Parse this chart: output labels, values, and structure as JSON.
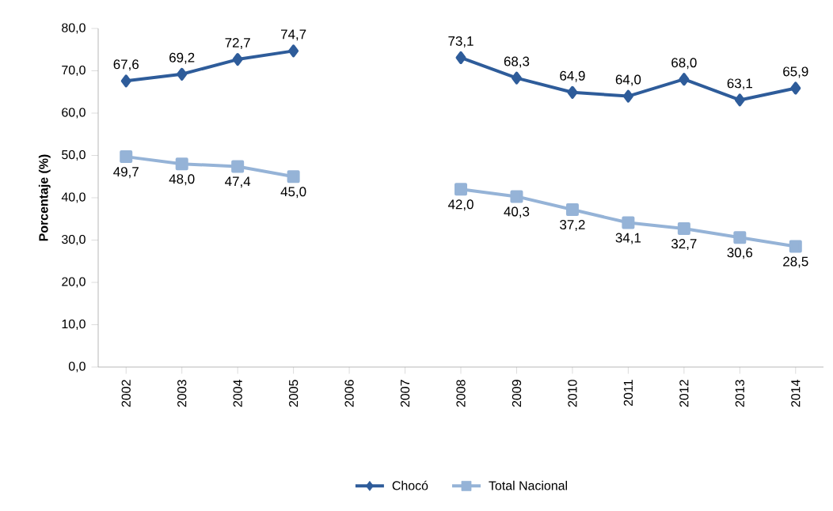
{
  "chart_data": {
    "type": "line",
    "ylabel": "Porcentaje (%)",
    "categories": [
      "2002",
      "2003",
      "2004",
      "2005",
      "2006",
      "2007",
      "2008",
      "2009",
      "2010",
      "2011",
      "2012",
      "2013",
      "2014"
    ],
    "series": [
      {
        "name": "Chocó",
        "color": "#2e5c9a",
        "marker": "diamond",
        "values": [
          67.6,
          69.2,
          72.7,
          74.7,
          null,
          null,
          73.1,
          68.3,
          64.9,
          64.0,
          68.0,
          63.1,
          65.9
        ],
        "value_labels": [
          "67,6",
          "69,2",
          "72,7",
          "74,7",
          null,
          null,
          "73,1",
          "68,3",
          "64,9",
          "64,0",
          "68,0",
          "63,1",
          "65,9"
        ]
      },
      {
        "name": "Total Nacional",
        "color": "#95b3d7",
        "marker": "square",
        "values": [
          49.7,
          48.0,
          47.4,
          45.0,
          null,
          null,
          42.0,
          40.3,
          37.2,
          34.1,
          32.7,
          30.6,
          28.5
        ],
        "value_labels": [
          "49,7",
          "48,0",
          "47,4",
          "45,0",
          null,
          null,
          "42,0",
          "40,3",
          "37,2",
          "34,1",
          "32,7",
          "30,6",
          "28,5"
        ]
      }
    ],
    "ylim": [
      0,
      80
    ],
    "yticks": [
      {
        "value": 0,
        "label": "0,0"
      },
      {
        "value": 10,
        "label": "10,0"
      },
      {
        "value": 20,
        "label": "20,0"
      },
      {
        "value": 30,
        "label": "30,0"
      },
      {
        "value": 40,
        "label": "40,0"
      },
      {
        "value": 50,
        "label": "50,0"
      },
      {
        "value": 60,
        "label": "60,0"
      },
      {
        "value": 70,
        "label": "70,0"
      },
      {
        "value": 80,
        "label": "80,0"
      }
    ],
    "legend": "bottom",
    "grid": false,
    "line_style": "solid"
  }
}
